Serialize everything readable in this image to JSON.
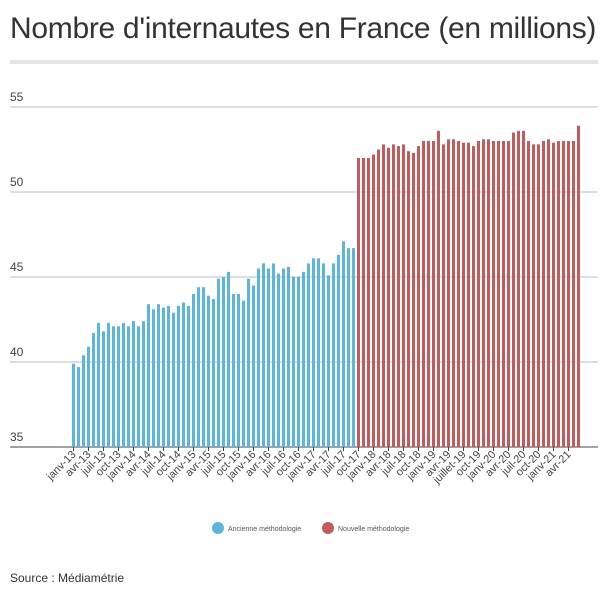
{
  "title": "Nombre d'internautes en France (en millions)",
  "source": "Source : Médiamétrie",
  "chart_data": {
    "type": "bar",
    "title": "Nombre d'internautes en France (en millions)",
    "ylim": [
      35,
      55
    ],
    "yticks": [
      35,
      40,
      45,
      50,
      55
    ],
    "grid": true,
    "legend_position": "bottom",
    "x_tick_labels": [
      "janv-13",
      "avr-13",
      "juil-13",
      "oct-13",
      "janv-14",
      "avr-14",
      "juil-14",
      "oct-14",
      "janv-15",
      "avr-15",
      "juil-15",
      "oct-15",
      "janv-16",
      "avr-16",
      "juil-16",
      "oct-16",
      "janv-17",
      "avr-17",
      "juil-17",
      "oct-17",
      "janv-18",
      "avr-18",
      "juil-18",
      "oct-18",
      "janv-19",
      "avr-19",
      "juillet-19",
      "oct-19",
      "janv-20",
      "avr-20",
      "juil-20",
      "oct-20",
      "janv-21",
      "avr-21"
    ],
    "series": [
      {
        "name": "Ancienne méthodologie",
        "color": "#5bb5dc",
        "values": [
          39.9,
          39.7,
          40.4,
          40.9,
          41.7,
          42.3,
          41.8,
          42.3,
          42.1,
          42.1,
          42.3,
          42.1,
          42.4,
          42.1,
          42.4,
          43.4,
          43.1,
          43.4,
          43.2,
          43.3,
          42.9,
          43.3,
          43.5,
          43.3,
          44.0,
          44.4,
          44.4,
          43.9,
          43.7,
          44.9,
          45.0,
          45.3,
          44.0,
          44.0,
          43.6,
          44.9,
          44.5,
          45.5,
          45.8,
          45.5,
          45.8,
          45.2,
          45.5,
          45.6,
          45.0,
          45.0,
          45.3,
          45.8,
          46.1,
          46.1,
          45.8,
          45.1,
          45.8,
          46.3,
          47.1,
          46.7,
          46.7
        ]
      },
      {
        "name": "Nouvelle méthodologie",
        "color": "#c25b5b",
        "values": [
          52.0,
          52.0,
          52.0,
          52.2,
          52.5,
          52.8,
          52.6,
          52.8,
          52.7,
          52.8,
          52.4,
          52.3,
          52.7,
          53.0,
          53.0,
          53.0,
          53.6,
          52.8,
          53.1,
          53.1,
          53.0,
          52.9,
          52.9,
          52.7,
          53.0,
          53.1,
          53.1,
          53.0,
          53.0,
          53.0,
          53.0,
          53.5,
          53.6,
          53.6,
          53.0,
          52.8,
          52.8,
          53.0,
          53.1,
          52.9,
          53.0,
          53.0,
          53.0,
          53.0,
          53.9
        ]
      }
    ]
  }
}
